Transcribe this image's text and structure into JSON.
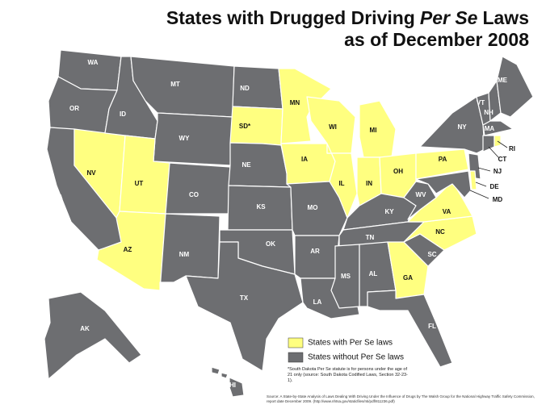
{
  "title": {
    "line1_before": "States with Drugged Driving",
    "line1_italic": "Per Se",
    "line1_after": "Laws",
    "line2": "as of December 2008"
  },
  "states": [
    {
      "code": "WA",
      "per_se": false
    },
    {
      "code": "OR",
      "per_se": false
    },
    {
      "code": "CA",
      "per_se": false
    },
    {
      "code": "NV",
      "per_se": true
    },
    {
      "code": "ID",
      "per_se": false
    },
    {
      "code": "MT",
      "per_se": false
    },
    {
      "code": "WY",
      "per_se": false
    },
    {
      "code": "UT",
      "per_se": true
    },
    {
      "code": "CO",
      "per_se": false
    },
    {
      "code": "AZ",
      "per_se": true
    },
    {
      "code": "NM",
      "per_se": false
    },
    {
      "code": "ND",
      "per_se": false
    },
    {
      "code": "SD*",
      "per_se": true
    },
    {
      "code": "NE",
      "per_se": false
    },
    {
      "code": "KS",
      "per_se": false
    },
    {
      "code": "OK",
      "per_se": false
    },
    {
      "code": "TX",
      "per_se": false
    },
    {
      "code": "MN",
      "per_se": true
    },
    {
      "code": "IA",
      "per_se": true
    },
    {
      "code": "MO",
      "per_se": false
    },
    {
      "code": "AR",
      "per_se": false
    },
    {
      "code": "LA",
      "per_se": false
    },
    {
      "code": "WI",
      "per_se": true
    },
    {
      "code": "IL",
      "per_se": true
    },
    {
      "code": "MI",
      "per_se": true
    },
    {
      "code": "IN",
      "per_se": true
    },
    {
      "code": "OH",
      "per_se": true
    },
    {
      "code": "KY",
      "per_se": false
    },
    {
      "code": "TN",
      "per_se": false
    },
    {
      "code": "MS",
      "per_se": false
    },
    {
      "code": "AL",
      "per_se": false
    },
    {
      "code": "GA",
      "per_se": true
    },
    {
      "code": "FL",
      "per_se": false
    },
    {
      "code": "SC",
      "per_se": false
    },
    {
      "code": "NC",
      "per_se": true
    },
    {
      "code": "VA",
      "per_se": true
    },
    {
      "code": "WV",
      "per_se": false
    },
    {
      "code": "PA",
      "per_se": true
    },
    {
      "code": "NY",
      "per_se": false
    },
    {
      "code": "VT",
      "per_se": false
    },
    {
      "code": "NH",
      "per_se": false
    },
    {
      "code": "ME",
      "per_se": false
    },
    {
      "code": "MA",
      "per_se": false
    },
    {
      "code": "CT",
      "per_se": false
    },
    {
      "code": "RI",
      "per_se": true
    },
    {
      "code": "NJ",
      "per_se": false
    },
    {
      "code": "DE",
      "per_se": true
    },
    {
      "code": "MD",
      "per_se": false
    },
    {
      "code": "AK",
      "per_se": false
    },
    {
      "code": "HI",
      "per_se": false
    }
  ],
  "legend": [
    {
      "label": "States with Per Se laws",
      "color": "#ffff80"
    },
    {
      "label": "States without Per Se laws",
      "color": "#6d6e71"
    }
  ],
  "footnote": "*South Dakota Per Se statute is for persons under the age of 21 only (source: South Dakota Codified Laws, Section 32-23-1).",
  "source": "Source: A State-by-State Analysis of Laws Dealing With Driving Under the Influence of Drugs by The Walsh Group for the National Highway Traffic Safety Commission, report date December 2009. (http://www.nhtsa.gov/staticfiles/nti/pdf/811236.pdf)"
}
